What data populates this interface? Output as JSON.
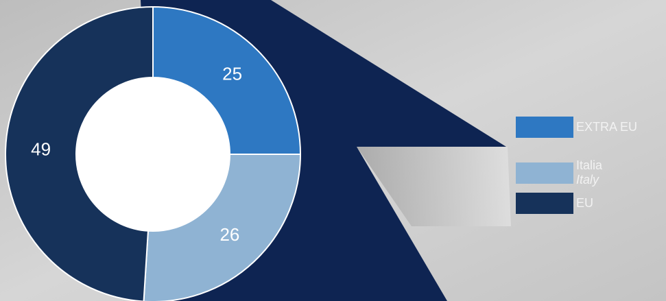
{
  "chart_data": {
    "type": "donut",
    "categories": [
      "EXTRA EU",
      "Italia",
      "EU"
    ],
    "category_subtitles": [
      null,
      "Italy",
      null
    ],
    "values": [
      25,
      26,
      49
    ],
    "colors": [
      "#2e78c2",
      "#8fb3d3",
      "#16325a"
    ],
    "legend": "right"
  }
}
